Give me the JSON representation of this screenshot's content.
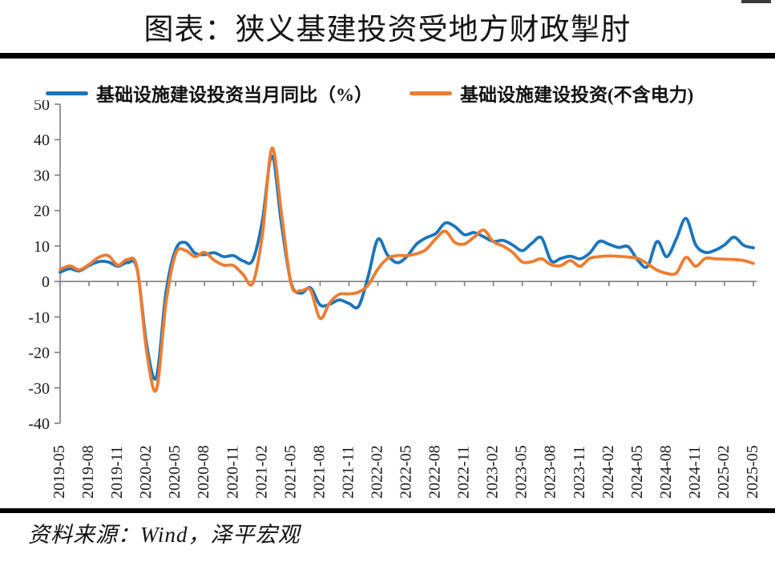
{
  "page": {
    "title": "图表：狭义基建投资受地方财政掣肘",
    "source": "资料来源：Wind，泽平宏观"
  },
  "chart_data": {
    "type": "line",
    "title": "图表：狭义基建投资受地方财政掣肘",
    "xlabel": "",
    "ylabel": "",
    "legend_position": "top",
    "grid": "zero-baseline-only",
    "axis_color": "#7f7f7f",
    "y_axis": {
      "min": -40,
      "max": 50,
      "step": 10,
      "tick_labels": [
        "50",
        "40",
        "30",
        "20",
        "10",
        "0",
        "-10",
        "-20",
        "-30",
        "-40"
      ]
    },
    "x_tick_every": 3,
    "x_tick_labels": [
      "2019-05",
      "2019-08",
      "2019-11",
      "2020-02",
      "2020-05",
      "2020-08",
      "2020-11",
      "2021-02",
      "2021-05",
      "2021-08",
      "2021-11",
      "2022-02",
      "2022-05",
      "2022-08",
      "2022-11",
      "2023-02",
      "2023-05",
      "2023-08",
      "2023-11",
      "2024-02",
      "2024-05",
      "2024-08",
      "2024-11",
      "2025-02",
      "2025-05"
    ],
    "categories": [
      "2019-05",
      "2019-06",
      "2019-07",
      "2019-08",
      "2019-09",
      "2019-10",
      "2019-11",
      "2019-12",
      "2020-01",
      "2020-02",
      "2020-03",
      "2020-04",
      "2020-05",
      "2020-06",
      "2020-07",
      "2020-08",
      "2020-09",
      "2020-10",
      "2020-11",
      "2020-12",
      "2021-01",
      "2021-02",
      "2021-03",
      "2021-04",
      "2021-05",
      "2021-06",
      "2021-07",
      "2021-08",
      "2021-09",
      "2021-10",
      "2021-11",
      "2021-12",
      "2022-01",
      "2022-02",
      "2022-03",
      "2022-04",
      "2022-05",
      "2022-06",
      "2022-07",
      "2022-08",
      "2022-09",
      "2022-10",
      "2022-11",
      "2022-12",
      "2023-01",
      "2023-02",
      "2023-03",
      "2023-04",
      "2023-05",
      "2023-06",
      "2023-07",
      "2023-08",
      "2023-09",
      "2023-10",
      "2023-11",
      "2023-12",
      "2024-01",
      "2024-02",
      "2024-03",
      "2024-04",
      "2024-05",
      "2024-06",
      "2024-07",
      "2024-08",
      "2024-09",
      "2024-10",
      "2024-11",
      "2024-12",
      "2025-01",
      "2025-02",
      "2025-03",
      "2025-04",
      "2025-05"
    ],
    "series": [
      {
        "name": "基础设施建设投资当月同比（%）",
        "color": "#1b75bc",
        "values": [
          2.6,
          3.6,
          3.0,
          4.5,
          5.6,
          5.5,
          4.3,
          5.3,
          3.5,
          -18.0,
          -27.0,
          -3.0,
          9.0,
          11.0,
          8.0,
          7.6,
          8.1,
          7.0,
          7.3,
          5.8,
          6.0,
          17.0,
          35.4,
          16.0,
          -0.5,
          -3.3,
          -1.8,
          -6.6,
          -6.4,
          -5.2,
          -6.2,
          -7.0,
          1.5,
          11.9,
          7.5,
          5.3,
          7.0,
          10.5,
          12.3,
          13.5,
          16.5,
          15.5,
          13.2,
          13.8,
          12.6,
          11.3,
          11.6,
          10.3,
          8.7,
          10.8,
          12.3,
          5.8,
          6.5,
          7.1,
          6.4,
          8.0,
          11.3,
          10.5,
          9.6,
          9.8,
          6.0,
          4.2,
          11.3,
          7.0,
          12.0,
          17.8,
          10.4,
          8.2,
          8.8,
          10.3,
          12.5,
          10.2,
          9.5
        ]
      },
      {
        "name": "基础设施建设投资(不含电力)",
        "color": "#ed7d31",
        "values": [
          3.4,
          4.4,
          3.3,
          4.8,
          6.8,
          7.3,
          4.6,
          6.2,
          3.8,
          -20.0,
          -30.5,
          -6.0,
          7.8,
          8.8,
          7.0,
          8.2,
          6.0,
          4.6,
          4.5,
          2.0,
          -0.5,
          13.0,
          37.6,
          19.0,
          -0.8,
          -2.6,
          -2.4,
          -10.4,
          -6.0,
          -3.6,
          -3.5,
          -3.0,
          -1.0,
          3.5,
          6.5,
          7.3,
          7.3,
          7.8,
          9.0,
          12.0,
          14.2,
          11.0,
          10.6,
          12.5,
          14.5,
          11.2,
          10.0,
          8.2,
          5.5,
          5.6,
          6.4,
          4.7,
          4.5,
          5.9,
          4.3,
          6.5,
          7.0,
          7.2,
          7.1,
          6.9,
          6.5,
          5.0,
          3.2,
          2.3,
          2.4,
          6.8,
          4.3,
          6.5,
          6.4,
          6.3,
          6.2,
          5.9,
          5.1
        ]
      }
    ]
  }
}
